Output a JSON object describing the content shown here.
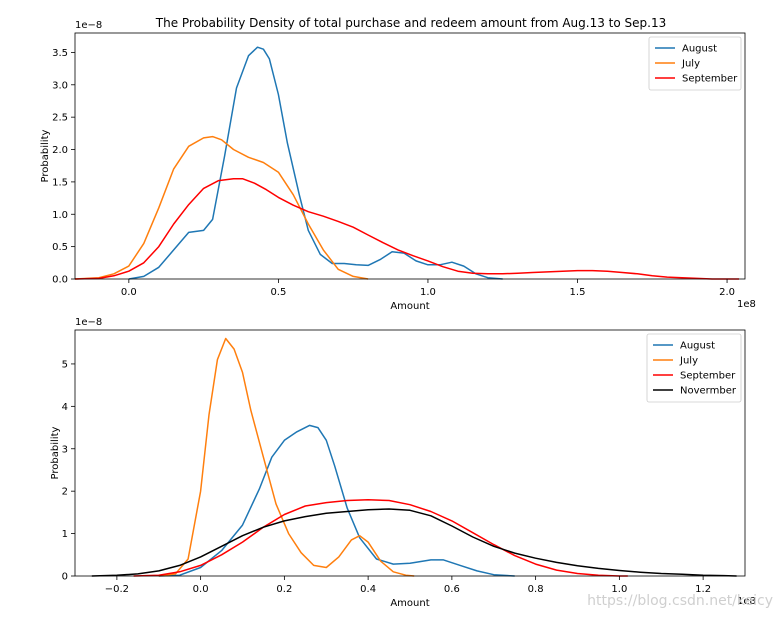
{
  "watermark": "https://blog.csdn.net/keicy",
  "colors": {
    "August": "#1f77b4",
    "July": "#ff7f0e",
    "September": "#ff0000",
    "Novermber": "#000000"
  },
  "chart_data": [
    {
      "type": "line",
      "title": "The Probability Density of total purchase and redeem amount from Aug.13 to Sep.13",
      "xlabel": "Amount",
      "ylabel": "Probability",
      "x_offset_text": "1e8",
      "y_offset_text": "1e−8",
      "xlim": [
        -0.18,
        2.06
      ],
      "ylim": [
        0,
        3.8
      ],
      "xticks": [
        0.0,
        0.5,
        1.0,
        1.5,
        2.0
      ],
      "xtick_labels": [
        "0.0",
        "0.5",
        "1.0",
        "1.5",
        "2.0"
      ],
      "yticks": [
        0.0,
        0.5,
        1.0,
        1.5,
        2.0,
        2.5,
        3.0,
        3.5
      ],
      "ytick_labels": [
        "0.0",
        "0.5",
        "1.0",
        "1.5",
        "2.0",
        "2.5",
        "3.0",
        "3.5"
      ],
      "legend": "top-right",
      "series": [
        {
          "name": "August",
          "x": [
            0.0,
            0.05,
            0.1,
            0.15,
            0.2,
            0.25,
            0.28,
            0.32,
            0.36,
            0.4,
            0.43,
            0.45,
            0.47,
            0.5,
            0.53,
            0.57,
            0.6,
            0.64,
            0.68,
            0.72,
            0.76,
            0.8,
            0.84,
            0.88,
            0.92,
            0.96,
            1.0,
            1.04,
            1.08,
            1.12,
            1.16,
            1.2,
            1.25
          ],
          "y": [
            0.0,
            0.04,
            0.18,
            0.45,
            0.72,
            0.75,
            0.92,
            1.9,
            2.95,
            3.45,
            3.58,
            3.55,
            3.4,
            2.85,
            2.1,
            1.3,
            0.75,
            0.38,
            0.24,
            0.24,
            0.22,
            0.21,
            0.3,
            0.42,
            0.4,
            0.28,
            0.22,
            0.22,
            0.26,
            0.2,
            0.08,
            0.02,
            0.0
          ]
        },
        {
          "name": "July",
          "x": [
            -0.18,
            -0.1,
            -0.05,
            0.0,
            0.05,
            0.1,
            0.15,
            0.2,
            0.25,
            0.28,
            0.31,
            0.35,
            0.4,
            0.45,
            0.5,
            0.55,
            0.6,
            0.65,
            0.7,
            0.75,
            0.8
          ],
          "y": [
            0.0,
            0.02,
            0.08,
            0.2,
            0.55,
            1.1,
            1.7,
            2.05,
            2.18,
            2.2,
            2.15,
            2.0,
            1.88,
            1.8,
            1.65,
            1.3,
            0.85,
            0.45,
            0.15,
            0.04,
            0.0
          ]
        },
        {
          "name": "September",
          "x": [
            -0.18,
            -0.1,
            -0.05,
            0.0,
            0.05,
            0.1,
            0.15,
            0.2,
            0.25,
            0.3,
            0.35,
            0.38,
            0.42,
            0.46,
            0.5,
            0.55,
            0.6,
            0.65,
            0.7,
            0.75,
            0.8,
            0.85,
            0.9,
            0.95,
            1.0,
            1.05,
            1.1,
            1.15,
            1.2,
            1.25,
            1.3,
            1.35,
            1.4,
            1.45,
            1.5,
            1.55,
            1.6,
            1.65,
            1.7,
            1.75,
            1.8,
            1.85,
            1.9,
            1.95,
            2.0,
            2.04
          ],
          "y": [
            0.0,
            0.01,
            0.05,
            0.12,
            0.25,
            0.5,
            0.85,
            1.15,
            1.4,
            1.52,
            1.55,
            1.55,
            1.48,
            1.38,
            1.26,
            1.14,
            1.04,
            0.97,
            0.89,
            0.8,
            0.68,
            0.56,
            0.45,
            0.36,
            0.28,
            0.19,
            0.12,
            0.09,
            0.08,
            0.08,
            0.09,
            0.1,
            0.11,
            0.12,
            0.13,
            0.13,
            0.12,
            0.1,
            0.08,
            0.05,
            0.03,
            0.02,
            0.01,
            0.0,
            0.0,
            0.0
          ]
        }
      ]
    },
    {
      "type": "line",
      "title": "",
      "xlabel": "Amount",
      "ylabel": "Probability",
      "x_offset_text": "1e8",
      "y_offset_text": "1e−8",
      "xlim": [
        -0.3,
        1.3
      ],
      "ylim": [
        0,
        5.8
      ],
      "xticks": [
        -0.2,
        0.0,
        0.2,
        0.4,
        0.6,
        0.8,
        1.0,
        1.2
      ],
      "xtick_labels": [
        "−0.2",
        "0.0",
        "0.2",
        "0.4",
        "0.6",
        "0.8",
        "1.0",
        "1.2"
      ],
      "yticks": [
        0,
        1,
        2,
        3,
        4,
        5
      ],
      "ytick_labels": [
        "0",
        "1",
        "2",
        "3",
        "4",
        "5"
      ],
      "legend": "top-right",
      "series": [
        {
          "name": "August",
          "x": [
            -0.1,
            -0.05,
            0.0,
            0.05,
            0.1,
            0.14,
            0.17,
            0.2,
            0.23,
            0.26,
            0.28,
            0.3,
            0.32,
            0.35,
            0.38,
            0.42,
            0.46,
            0.5,
            0.55,
            0.58,
            0.62,
            0.66,
            0.7,
            0.75
          ],
          "y": [
            0.0,
            0.02,
            0.2,
            0.6,
            1.2,
            2.05,
            2.8,
            3.2,
            3.4,
            3.55,
            3.5,
            3.2,
            2.6,
            1.6,
            0.9,
            0.4,
            0.28,
            0.3,
            0.38,
            0.38,
            0.25,
            0.12,
            0.03,
            0.0
          ]
        },
        {
          "name": "July",
          "x": [
            -0.1,
            -0.06,
            -0.03,
            0.0,
            0.02,
            0.04,
            0.06,
            0.08,
            0.1,
            0.12,
            0.15,
            0.18,
            0.21,
            0.24,
            0.27,
            0.3,
            0.33,
            0.36,
            0.38,
            0.4,
            0.43,
            0.46,
            0.49,
            0.51
          ],
          "y": [
            0.0,
            0.05,
            0.4,
            2.0,
            3.8,
            5.1,
            5.6,
            5.35,
            4.8,
            3.9,
            2.8,
            1.7,
            1.0,
            0.55,
            0.25,
            0.2,
            0.45,
            0.85,
            0.95,
            0.8,
            0.35,
            0.1,
            0.02,
            0.0
          ]
        },
        {
          "name": "September",
          "x": [
            -0.16,
            -0.1,
            -0.05,
            0.0,
            0.05,
            0.1,
            0.15,
            0.2,
            0.25,
            0.3,
            0.35,
            0.4,
            0.45,
            0.5,
            0.55,
            0.6,
            0.65,
            0.7,
            0.75,
            0.8,
            0.85,
            0.9,
            0.95,
            1.0,
            1.02
          ],
          "y": [
            0.0,
            0.02,
            0.1,
            0.25,
            0.5,
            0.8,
            1.15,
            1.45,
            1.65,
            1.73,
            1.78,
            1.8,
            1.78,
            1.68,
            1.52,
            1.3,
            1.02,
            0.74,
            0.48,
            0.28,
            0.14,
            0.06,
            0.02,
            0.0,
            0.0
          ]
        },
        {
          "name": "Novermber",
          "x": [
            -0.26,
            -0.2,
            -0.15,
            -0.1,
            -0.05,
            0.0,
            0.05,
            0.1,
            0.15,
            0.2,
            0.25,
            0.3,
            0.35,
            0.4,
            0.45,
            0.5,
            0.55,
            0.6,
            0.65,
            0.7,
            0.75,
            0.8,
            0.85,
            0.9,
            0.95,
            1.0,
            1.05,
            1.1,
            1.15,
            1.2,
            1.25,
            1.28
          ],
          "y": [
            0.0,
            0.02,
            0.05,
            0.12,
            0.25,
            0.45,
            0.7,
            0.95,
            1.15,
            1.3,
            1.4,
            1.48,
            1.52,
            1.56,
            1.58,
            1.55,
            1.42,
            1.18,
            0.92,
            0.7,
            0.54,
            0.42,
            0.32,
            0.24,
            0.18,
            0.13,
            0.09,
            0.06,
            0.04,
            0.02,
            0.01,
            0.0
          ]
        }
      ]
    }
  ]
}
